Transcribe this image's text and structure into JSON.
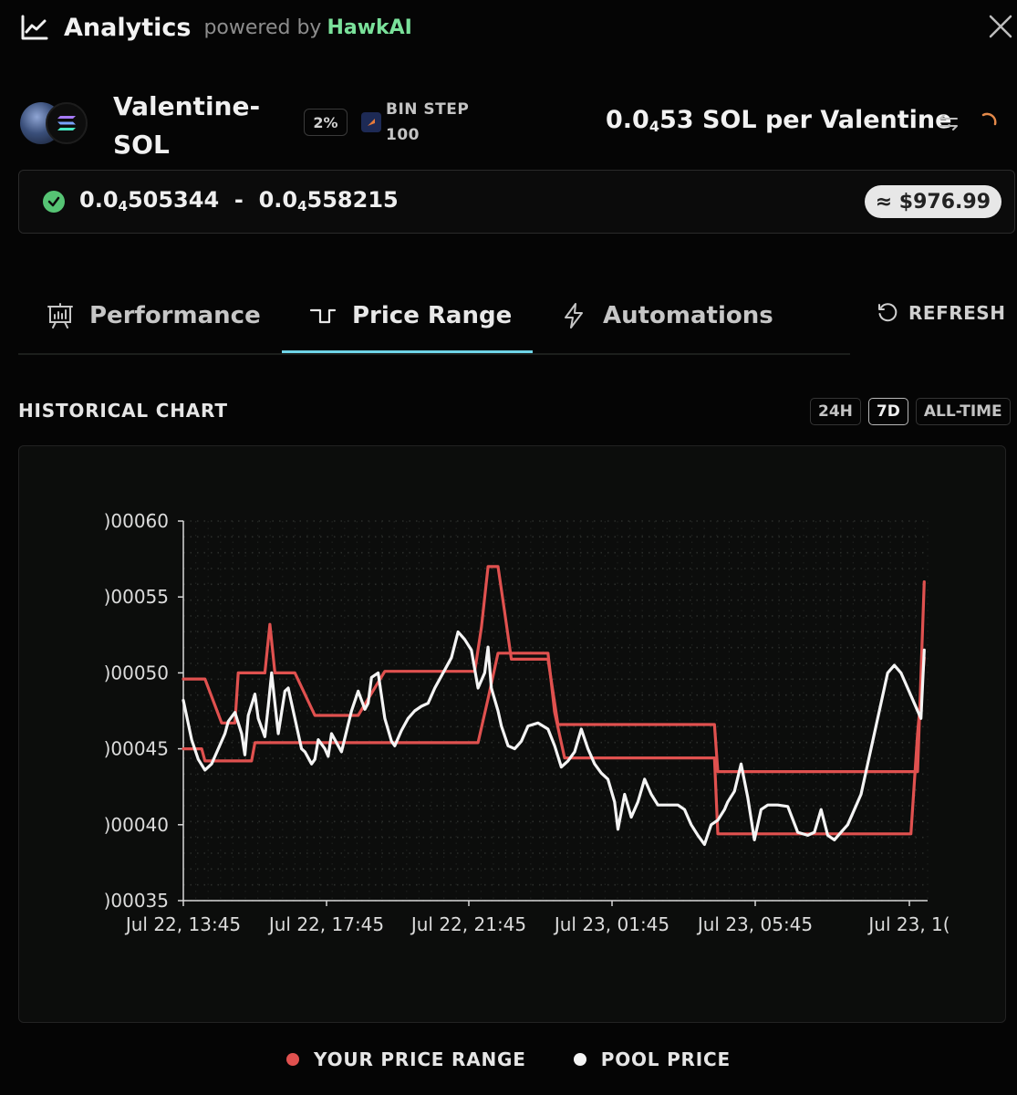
{
  "header": {
    "title": "Analytics",
    "powered_by": "powered by",
    "brand": "HawkAI",
    "icon": "line-chart-icon"
  },
  "pair": {
    "name": "Valentine-SOL",
    "fee": "2%",
    "bin_step_label": "BIN STEP",
    "bin_step_value": "100",
    "price_main": "0.0",
    "price_sub": "4",
    "price_rest": "53 SOL per Valentine"
  },
  "range": {
    "low_main": "0.0",
    "low_sub": "4",
    "low_rest": "505344",
    "separator": "-",
    "high_main": "0.0",
    "high_sub": "4",
    "high_rest": "558215",
    "usd_value": "≈ $976.99",
    "status_color": "#56c474"
  },
  "tabs": [
    {
      "label": "Performance",
      "icon": "presentation-chart-icon"
    },
    {
      "label": "Price Range",
      "icon": "step-wave-icon"
    },
    {
      "label": "Automations",
      "icon": "lightning-icon"
    }
  ],
  "refresh_label": "REFRESH",
  "historical": {
    "title": "HISTORICAL CHART",
    "periods": [
      "24H",
      "7D",
      "ALL-TIME"
    ],
    "selected_period": "7D"
  },
  "legend": {
    "range_label": "YOUR PRICE RANGE",
    "pool_label": "POOL PRICE"
  },
  "colors": {
    "range": "#e0514f",
    "pool": "#f4f4f4",
    "tab_accent": "#6fd5e8",
    "brand": "#7ae19a"
  },
  "chart_data": {
    "type": "line",
    "ylim": [
      3.5e-06,
      6e-06
    ],
    "y_ticks": [
      6e-06,
      5.5e-06,
      5e-06,
      4.5e-06,
      4e-06,
      3.5e-06
    ],
    "y_tick_labels": [
      ")00060",
      ")00055",
      ")00050",
      ")00045",
      ")00040",
      ")00035"
    ],
    "x_tick_labels": [
      "Jul 22, 13:45",
      "Jul 22, 17:45",
      "Jul 22, 21:45",
      "Jul 23, 01:45",
      "Jul 23, 05:45",
      "Jul 23, 1("
    ],
    "x_range": [
      -0.05,
      22.3
    ],
    "grid": true,
    "legend": "bottom-center",
    "series": [
      {
        "name": "YOUR PRICE RANGE",
        "color": "#e0514f",
        "x": [
          -0.05,
          0.5,
          0.6,
          1.1,
          1.2,
          2.0,
          2.1,
          2.5,
          2.6,
          3.3,
          3.5,
          3.7,
          3.9,
          4.1,
          4.2,
          4.8,
          4.9,
          5.1,
          5.2,
          6.0,
          6.1,
          7.1,
          7.2,
          8.8,
          9.1,
          9.4,
          9.6,
          9.9,
          10.0,
          10.9,
          11.1,
          11.4,
          11.6,
          12.3,
          12.4,
          12.8,
          14.0,
          15.9,
          16.0,
          17.0,
          18.0,
          19.0,
          20.0,
          21.0,
          21.5,
          21.7,
          21.8,
          22.0,
          22.2
        ],
        "y": [
          4.5e-06,
          4.5e-06,
          4.42e-06,
          4.42e-06,
          4.42e-06,
          4.42e-06,
          4.54e-06,
          4.54e-06,
          4.54e-06,
          4.54e-06,
          4.54e-06,
          4.54e-06,
          4.54e-06,
          4.54e-06,
          4.54e-06,
          4.54e-06,
          4.54e-06,
          4.54e-06,
          4.54e-06,
          4.54e-06,
          4.54e-06,
          4.54e-06,
          4.54e-06,
          4.54e-06,
          4.83e-06,
          5.13e-06,
          5.13e-06,
          5.13e-06,
          5.13e-06,
          5.13e-06,
          4.74e-06,
          4.44e-06,
          4.44e-06,
          4.44e-06,
          4.44e-06,
          4.44e-06,
          4.44e-06,
          4.44e-06,
          3.94e-06,
          3.94e-06,
          3.94e-06,
          3.94e-06,
          3.94e-06,
          3.94e-06,
          3.94e-06,
          3.94e-06,
          3.94e-06,
          4.6e-06,
          5.1e-06
        ]
      },
      {
        "name": "YOUR PRICE RANGE upper",
        "color": "#e0514f",
        "x": [
          -0.05,
          0.5,
          0.6,
          1.1,
          1.2,
          1.5,
          1.6,
          2.3,
          2.4,
          2.55,
          2.7,
          2.9,
          3.2,
          3.3,
          3.9,
          4.3,
          4.4,
          4.8,
          4.9,
          5.1,
          5.2,
          6.0,
          6.1,
          7.1,
          7.2,
          8.7,
          8.9,
          9.1,
          9.4,
          9.6,
          9.8,
          10.0,
          10.9,
          11.2,
          11.6,
          12.3,
          14.0,
          15.9,
          16.0,
          17.0,
          18.0,
          19.0,
          20.0,
          21.0,
          21.5,
          21.7,
          21.8,
          22.0,
          22.2
        ],
        "y": [
          4.96e-06,
          4.96e-06,
          4.96e-06,
          4.67e-06,
          4.67e-06,
          4.67e-06,
          5e-06,
          5e-06,
          5e-06,
          5.32e-06,
          5e-06,
          5e-06,
          5e-06,
          5e-06,
          4.72e-06,
          4.72e-06,
          4.72e-06,
          4.72e-06,
          4.72e-06,
          4.72e-06,
          4.72e-06,
          5.01e-06,
          5.01e-06,
          5.01e-06,
          5.01e-06,
          5.01e-06,
          5.3e-06,
          5.7e-06,
          5.7e-06,
          5.4e-06,
          5.09e-06,
          5.09e-06,
          5.09e-06,
          4.66e-06,
          4.66e-06,
          4.66e-06,
          4.66e-06,
          4.66e-06,
          4.35e-06,
          4.35e-06,
          4.35e-06,
          4.35e-06,
          4.35e-06,
          4.35e-06,
          4.35e-06,
          4.35e-06,
          4.35e-06,
          4.35e-06,
          5.6e-06
        ]
      },
      {
        "name": "POOL PRICE",
        "color": "#f4f4f4",
        "x": [
          -0.05,
          0.2,
          0.4,
          0.6,
          0.8,
          1.0,
          1.2,
          1.3,
          1.5,
          1.7,
          1.8,
          1.9,
          2.1,
          2.2,
          2.4,
          2.5,
          2.6,
          2.7,
          2.8,
          3.0,
          3.1,
          3.3,
          3.5,
          3.6,
          3.8,
          3.9,
          4.0,
          4.2,
          4.3,
          4.4,
          4.6,
          4.7,
          5.0,
          5.2,
          5.4,
          5.5,
          5.6,
          5.8,
          6.0,
          6.2,
          6.3,
          6.5,
          6.7,
          6.9,
          7.1,
          7.3,
          7.5,
          7.7,
          8.0,
          8.2,
          8.4,
          8.6,
          8.8,
          9.0,
          9.1,
          9.2,
          9.4,
          9.5,
          9.7,
          9.9,
          10.1,
          10.3,
          10.6,
          10.9,
          11.1,
          11.3,
          11.5,
          11.7,
          11.9,
          12.1,
          12.3,
          12.5,
          12.7,
          12.9,
          13.0,
          13.2,
          13.4,
          13.6,
          13.8,
          14.0,
          14.2,
          14.4,
          14.6,
          14.8,
          15.0,
          15.2,
          15.4,
          15.6,
          15.8,
          16.0,
          16.2,
          16.3,
          16.5,
          16.7,
          16.9,
          17.1,
          17.3,
          17.5,
          17.8,
          18.1,
          18.4,
          18.7,
          18.9,
          19.1,
          19.3,
          19.5,
          19.7,
          19.9,
          20.1,
          20.3,
          20.5,
          20.7,
          20.9,
          21.1,
          21.3,
          21.5,
          21.7,
          21.9,
          22.1,
          22.2
        ],
        "y": [
          4.82e-06,
          4.56e-06,
          4.43e-06,
          4.36e-06,
          4.4e-06,
          4.5e-06,
          4.6e-06,
          4.68e-06,
          4.74e-06,
          4.6e-06,
          4.46e-06,
          4.72e-06,
          4.86e-06,
          4.7e-06,
          4.58e-06,
          4.78e-06,
          5e-06,
          4.8e-06,
          4.6e-06,
          4.88e-06,
          4.9e-06,
          4.7e-06,
          4.5e-06,
          4.48e-06,
          4.4e-06,
          4.43e-06,
          4.56e-06,
          4.5e-06,
          4.45e-06,
          4.6e-06,
          4.52e-06,
          4.48e-06,
          4.75e-06,
          4.88e-06,
          4.76e-06,
          4.8e-06,
          4.97e-06,
          5e-06,
          4.7e-06,
          4.55e-06,
          4.52e-06,
          4.62e-06,
          4.7e-06,
          4.75e-06,
          4.78e-06,
          4.8e-06,
          4.9e-06,
          4.98e-06,
          5.1e-06,
          5.27e-06,
          5.22e-06,
          5.15e-06,
          4.9e-06,
          5e-06,
          5.17e-06,
          4.9e-06,
          4.75e-06,
          4.65e-06,
          4.52e-06,
          4.5e-06,
          4.55e-06,
          4.65e-06,
          4.67e-06,
          4.63e-06,
          4.52e-06,
          4.38e-06,
          4.42e-06,
          4.48e-06,
          4.63e-06,
          4.5e-06,
          4.4e-06,
          4.34e-06,
          4.3e-06,
          4.15e-06,
          3.97e-06,
          4.2e-06,
          4.05e-06,
          4.15e-06,
          4.3e-06,
          4.2e-06,
          4.13e-06,
          4.13e-06,
          4.13e-06,
          4.13e-06,
          4.1e-06,
          4e-06,
          3.93e-06,
          3.87e-06,
          4e-06,
          4.03e-06,
          4.1e-06,
          4.15e-06,
          4.22e-06,
          4.4e-06,
          4.18e-06,
          3.9e-06,
          4.1e-06,
          4.13e-06,
          4.13e-06,
          4.12e-06,
          3.95e-06,
          3.93e-06,
          3.95e-06,
          4.1e-06,
          3.93e-06,
          3.9e-06,
          3.95e-06,
          4e-06,
          4.1e-06,
          4.2e-06,
          4.4e-06,
          4.6e-06,
          4.8e-06,
          5e-06,
          5.05e-06,
          5e-06,
          4.9e-06,
          4.8e-06,
          4.7e-06,
          5.15e-06
        ]
      }
    ]
  }
}
